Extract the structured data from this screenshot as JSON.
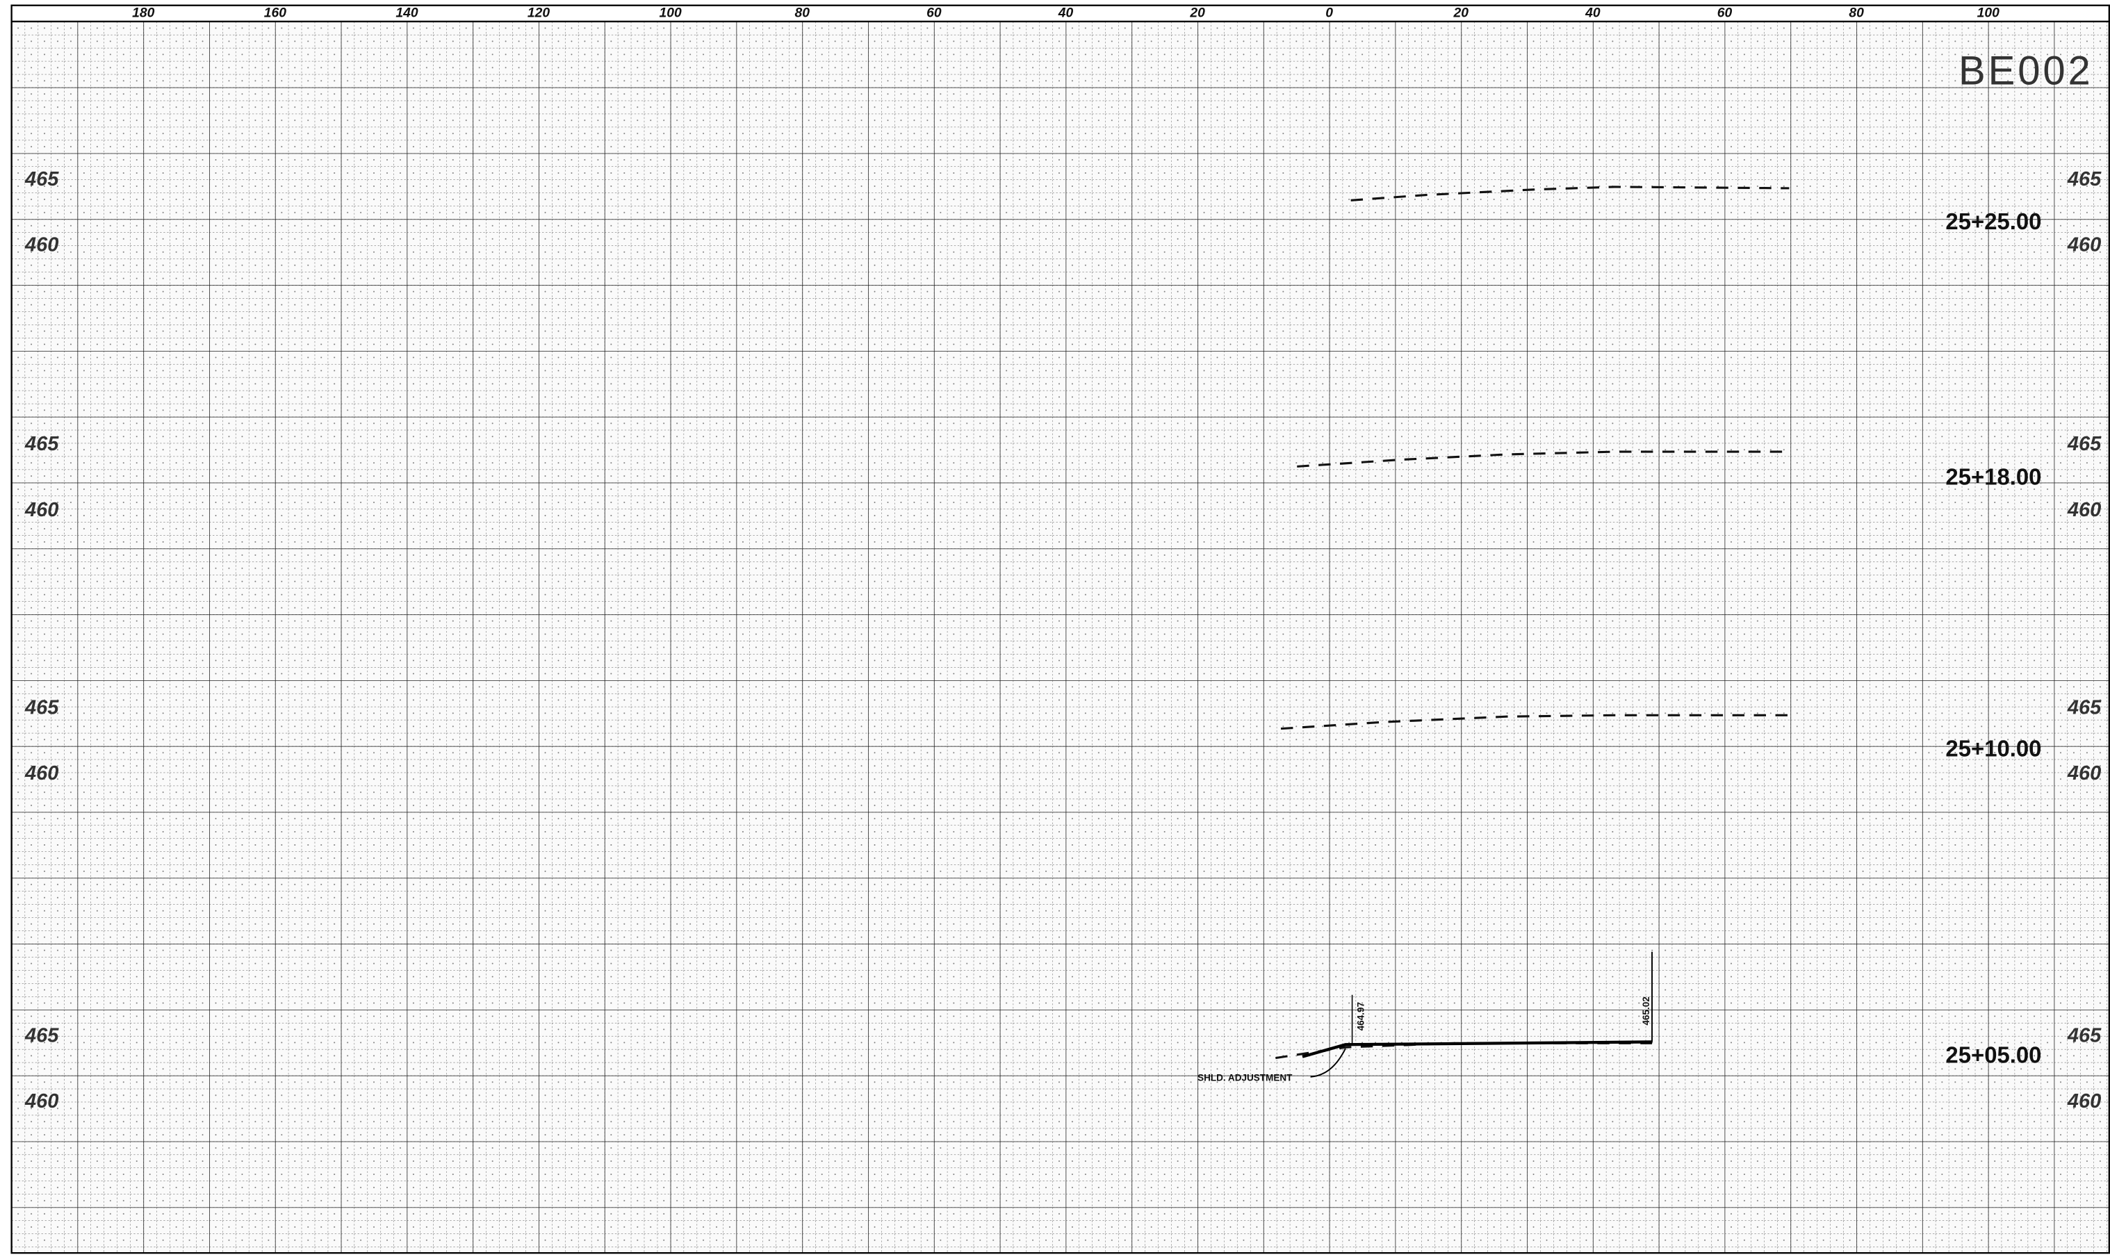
{
  "sheet": "BE002",
  "offset_scale": [
    "180",
    "160",
    "140",
    "120",
    "100",
    "80",
    "60",
    "40",
    "20",
    "0",
    "20",
    "40",
    "60",
    "80",
    "100"
  ],
  "sections": [
    {
      "station": "25+25.00",
      "elevations": [
        "465",
        "460"
      ]
    },
    {
      "station": "25+18.00",
      "elevations": [
        "465",
        "460"
      ]
    },
    {
      "station": "25+10.00",
      "elevations": [
        "465",
        "460"
      ]
    },
    {
      "station": "25+05.00",
      "elevations": [
        "465",
        "460"
      ]
    }
  ],
  "annotations": {
    "shoulder": "SHLD. ADJUSTMENT",
    "left_elevation": "464.97",
    "right_elevation": "465.02"
  }
}
